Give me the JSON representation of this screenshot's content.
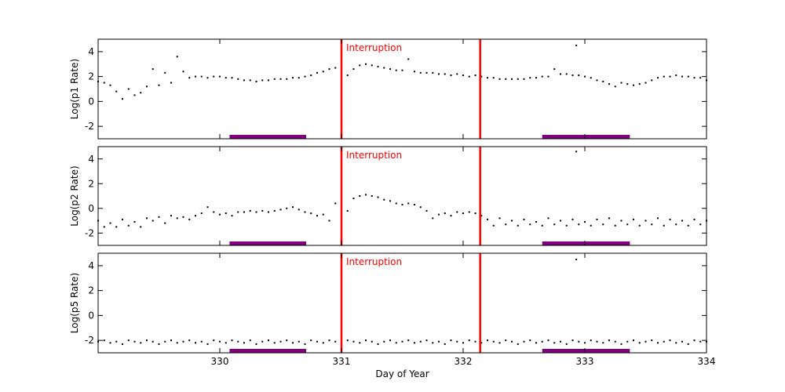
{
  "chart_data": [
    {
      "type": "scatter",
      "ylabel": "Log(p1 Rate)",
      "color": "#000000",
      "xlim": [
        329,
        334
      ],
      "ylim": [
        -3,
        5
      ],
      "yticks": [
        -2,
        0,
        2,
        4
      ],
      "vlines": [
        331.0,
        332.14
      ],
      "vline_color": "#ff0000",
      "annotation": "Interruption",
      "spans": [
        [
          330.08,
          330.71
        ],
        [
          332.65,
          333.37
        ]
      ],
      "span_color": "#800080",
      "x": [
        329.0,
        329.05,
        329.1,
        329.15,
        329.2,
        329.25,
        329.3,
        329.35,
        329.4,
        329.45,
        329.5,
        329.55,
        329.6,
        329.65,
        329.7,
        329.75,
        329.8,
        329.85,
        329.9,
        329.95,
        330.0,
        330.05,
        330.1,
        330.15,
        330.2,
        330.25,
        330.3,
        330.35,
        330.4,
        330.45,
        330.5,
        330.55,
        330.6,
        330.65,
        330.7,
        330.75,
        330.8,
        330.85,
        330.9,
        330.95,
        331.0,
        331.05,
        331.1,
        331.15,
        331.2,
        331.25,
        331.3,
        331.35,
        331.4,
        331.45,
        331.5,
        331.55,
        331.6,
        331.65,
        331.7,
        331.75,
        331.8,
        331.85,
        331.9,
        331.95,
        332.0,
        332.05,
        332.1,
        332.15,
        332.2,
        332.25,
        332.3,
        332.35,
        332.4,
        332.45,
        332.5,
        332.55,
        332.6,
        332.65,
        332.7,
        332.75,
        332.8,
        332.85,
        332.9,
        332.95,
        333.0,
        333.05,
        333.1,
        333.15,
        333.2,
        333.25,
        333.3,
        333.35,
        333.4,
        333.45,
        333.5,
        333.55,
        333.6,
        333.65,
        333.7,
        333.75,
        333.8,
        333.85,
        333.9,
        333.95,
        334.0,
        332.93
      ],
      "values": [
        1.6,
        1.5,
        1.3,
        0.8,
        0.2,
        1.0,
        0.5,
        0.7,
        1.2,
        2.6,
        1.3,
        2.3,
        1.5,
        3.6,
        2.4,
        1.9,
        2.0,
        2.0,
        1.9,
        2.0,
        2.0,
        1.9,
        1.9,
        1.8,
        1.7,
        1.7,
        1.6,
        1.7,
        1.7,
        1.8,
        1.8,
        1.8,
        1.9,
        1.9,
        2.0,
        2.1,
        2.3,
        2.4,
        2.6,
        2.7,
        2.6,
        2.1,
        2.6,
        2.9,
        3.0,
        2.9,
        2.8,
        2.7,
        2.6,
        2.5,
        2.5,
        3.4,
        2.4,
        2.3,
        2.3,
        2.3,
        2.2,
        2.2,
        2.1,
        2.2,
        2.1,
        2.0,
        2.1,
        2.0,
        1.9,
        1.9,
        1.8,
        1.8,
        1.8,
        1.8,
        1.8,
        1.9,
        1.9,
        2.0,
        2.0,
        2.6,
        2.2,
        2.2,
        2.1,
        2.1,
        2.0,
        1.9,
        1.7,
        1.6,
        1.4,
        1.2,
        1.5,
        1.4,
        1.3,
        1.4,
        1.5,
        1.7,
        1.9,
        2.0,
        2.0,
        2.1,
        2.0,
        2.0,
        1.9,
        1.9,
        1.7,
        4.5
      ]
    },
    {
      "type": "scatter",
      "ylabel": "Log(p2 Rate)",
      "color": "#000000",
      "xlim": [
        329,
        334
      ],
      "ylim": [
        -3,
        5
      ],
      "yticks": [
        -2,
        0,
        2,
        4
      ],
      "vlines": [
        331.0,
        332.14
      ],
      "vline_color": "#ff0000",
      "annotation": "Interruption",
      "spans": [
        [
          330.08,
          330.71
        ],
        [
          332.65,
          333.37
        ]
      ],
      "span_color": "#800080",
      "x": [
        329.0,
        329.05,
        329.1,
        329.15,
        329.2,
        329.25,
        329.3,
        329.35,
        329.4,
        329.45,
        329.5,
        329.55,
        329.6,
        329.65,
        329.7,
        329.75,
        329.8,
        329.85,
        329.9,
        329.95,
        330.0,
        330.05,
        330.1,
        330.15,
        330.2,
        330.25,
        330.3,
        330.35,
        330.4,
        330.45,
        330.5,
        330.55,
        330.6,
        330.65,
        330.7,
        330.75,
        330.8,
        330.85,
        330.9,
        330.95,
        331.0,
        331.05,
        331.1,
        331.15,
        331.2,
        331.25,
        331.3,
        331.35,
        331.4,
        331.45,
        331.5,
        331.55,
        331.6,
        331.65,
        331.7,
        331.75,
        331.8,
        331.85,
        331.9,
        331.95,
        332.0,
        332.05,
        332.1,
        332.15,
        332.2,
        332.25,
        332.3,
        332.35,
        332.4,
        332.45,
        332.5,
        332.55,
        332.6,
        332.65,
        332.7,
        332.75,
        332.8,
        332.85,
        332.9,
        332.95,
        333.0,
        333.05,
        333.1,
        333.15,
        333.2,
        333.25,
        333.3,
        333.35,
        333.4,
        333.45,
        333.5,
        333.55,
        333.6,
        333.65,
        333.7,
        333.75,
        333.8,
        333.85,
        333.9,
        333.95,
        334.0,
        332.93
      ],
      "values": [
        -1.0,
        -1.5,
        -1.2,
        -1.5,
        -0.9,
        -1.4,
        -1.1,
        -1.5,
        -0.8,
        -1.0,
        -0.7,
        -1.2,
        -0.6,
        -0.8,
        -0.7,
        -0.9,
        -0.6,
        -0.4,
        0.1,
        -0.3,
        -0.5,
        -0.4,
        -0.6,
        -0.3,
        -0.3,
        -0.2,
        -0.3,
        -0.2,
        -0.3,
        -0.2,
        -0.1,
        0.0,
        0.1,
        -0.1,
        -0.3,
        -0.4,
        -0.6,
        -0.5,
        -1.0,
        0.4,
        0.5,
        -0.2,
        0.8,
        1.0,
        1.1,
        1.0,
        0.9,
        0.7,
        0.6,
        0.4,
        0.3,
        0.4,
        0.3,
        0.1,
        -0.2,
        -0.8,
        -0.5,
        -0.4,
        -0.6,
        -0.3,
        -0.4,
        -0.3,
        -0.4,
        -0.6,
        -0.9,
        -1.4,
        -0.8,
        -1.3,
        -1.0,
        -1.4,
        -0.9,
        -1.3,
        -1.1,
        -1.4,
        -0.8,
        -1.3,
        -1.0,
        -1.4,
        -0.9,
        -1.3,
        -1.1,
        -1.4,
        -0.9,
        -1.3,
        -0.8,
        -1.4,
        -1.0,
        -1.3,
        -0.9,
        -1.4,
        -1.0,
        -1.3,
        -0.8,
        -1.4,
        -0.9,
        -1.3,
        -1.0,
        -1.4,
        -0.9,
        -1.3,
        -1.0,
        4.6
      ]
    },
    {
      "type": "scatter",
      "ylabel": "Log(p5 Rate)",
      "xlabel": "Day of Year",
      "color": "#000000",
      "xlim": [
        329,
        334
      ],
      "ylim": [
        -3,
        5
      ],
      "yticks": [
        -2,
        0,
        2,
        4
      ],
      "xticks": [
        330,
        331,
        332,
        333,
        334
      ],
      "vlines": [
        331.0,
        332.14
      ],
      "vline_color": "#ff0000",
      "annotation": "Interruption",
      "spans": [
        [
          330.08,
          330.71
        ],
        [
          332.65,
          333.37
        ]
      ],
      "span_color": "#800080",
      "x": [
        329.0,
        329.05,
        329.1,
        329.15,
        329.2,
        329.25,
        329.3,
        329.35,
        329.4,
        329.45,
        329.5,
        329.55,
        329.6,
        329.65,
        329.7,
        329.75,
        329.8,
        329.85,
        329.9,
        329.95,
        330.0,
        330.05,
        330.1,
        330.15,
        330.2,
        330.25,
        330.3,
        330.35,
        330.4,
        330.45,
        330.5,
        330.55,
        330.6,
        330.65,
        330.7,
        330.75,
        330.8,
        330.85,
        330.9,
        330.95,
        331.0,
        331.05,
        331.1,
        331.15,
        331.2,
        331.25,
        331.3,
        331.35,
        331.4,
        331.45,
        331.5,
        331.55,
        331.6,
        331.65,
        331.7,
        331.75,
        331.8,
        331.85,
        331.9,
        331.95,
        332.0,
        332.05,
        332.1,
        332.15,
        332.2,
        332.25,
        332.3,
        332.35,
        332.4,
        332.45,
        332.5,
        332.55,
        332.6,
        332.65,
        332.7,
        332.75,
        332.8,
        332.85,
        332.9,
        332.95,
        333.0,
        333.05,
        333.1,
        333.15,
        333.2,
        333.25,
        333.3,
        333.35,
        333.4,
        333.45,
        333.5,
        333.55,
        333.6,
        333.65,
        333.7,
        333.75,
        333.8,
        333.85,
        333.9,
        333.95,
        334.0,
        332.93
      ],
      "values": [
        -2.1,
        -2.0,
        -2.2,
        -2.1,
        -2.3,
        -2.0,
        -2.1,
        -2.2,
        -2.0,
        -2.1,
        -2.3,
        -2.1,
        -2.0,
        -2.2,
        -2.1,
        -2.0,
        -2.2,
        -2.1,
        -2.3,
        -2.0,
        -2.1,
        -2.2,
        -2.0,
        -2.1,
        -2.2,
        -2.0,
        -2.3,
        -2.1,
        -2.0,
        -2.2,
        -2.1,
        -2.0,
        -2.2,
        -2.1,
        -2.3,
        -2.0,
        -2.1,
        -2.2,
        -2.0,
        -2.1,
        -2.2,
        -2.0,
        -2.1,
        -2.2,
        -2.0,
        -2.1,
        -2.3,
        -2.1,
        -2.0,
        -2.2,
        -2.1,
        -2.0,
        -2.2,
        -2.1,
        -2.0,
        -2.2,
        -2.1,
        -2.3,
        -2.0,
        -2.1,
        -2.2,
        -2.0,
        -2.1,
        -2.2,
        -2.0,
        -2.1,
        -2.2,
        -2.0,
        -2.1,
        -2.3,
        -2.1,
        -2.0,
        -2.2,
        -2.1,
        -2.0,
        -2.2,
        -2.1,
        -2.3,
        -2.0,
        -2.1,
        -2.2,
        -2.0,
        -2.1,
        -2.2,
        -2.0,
        -2.1,
        -2.3,
        -2.1,
        -2.0,
        -2.2,
        -2.1,
        -2.0,
        -2.2,
        -2.1,
        -2.0,
        -2.2,
        -2.1,
        -2.3,
        -2.0,
        -2.1,
        -2.1,
        4.5
      ]
    }
  ]
}
